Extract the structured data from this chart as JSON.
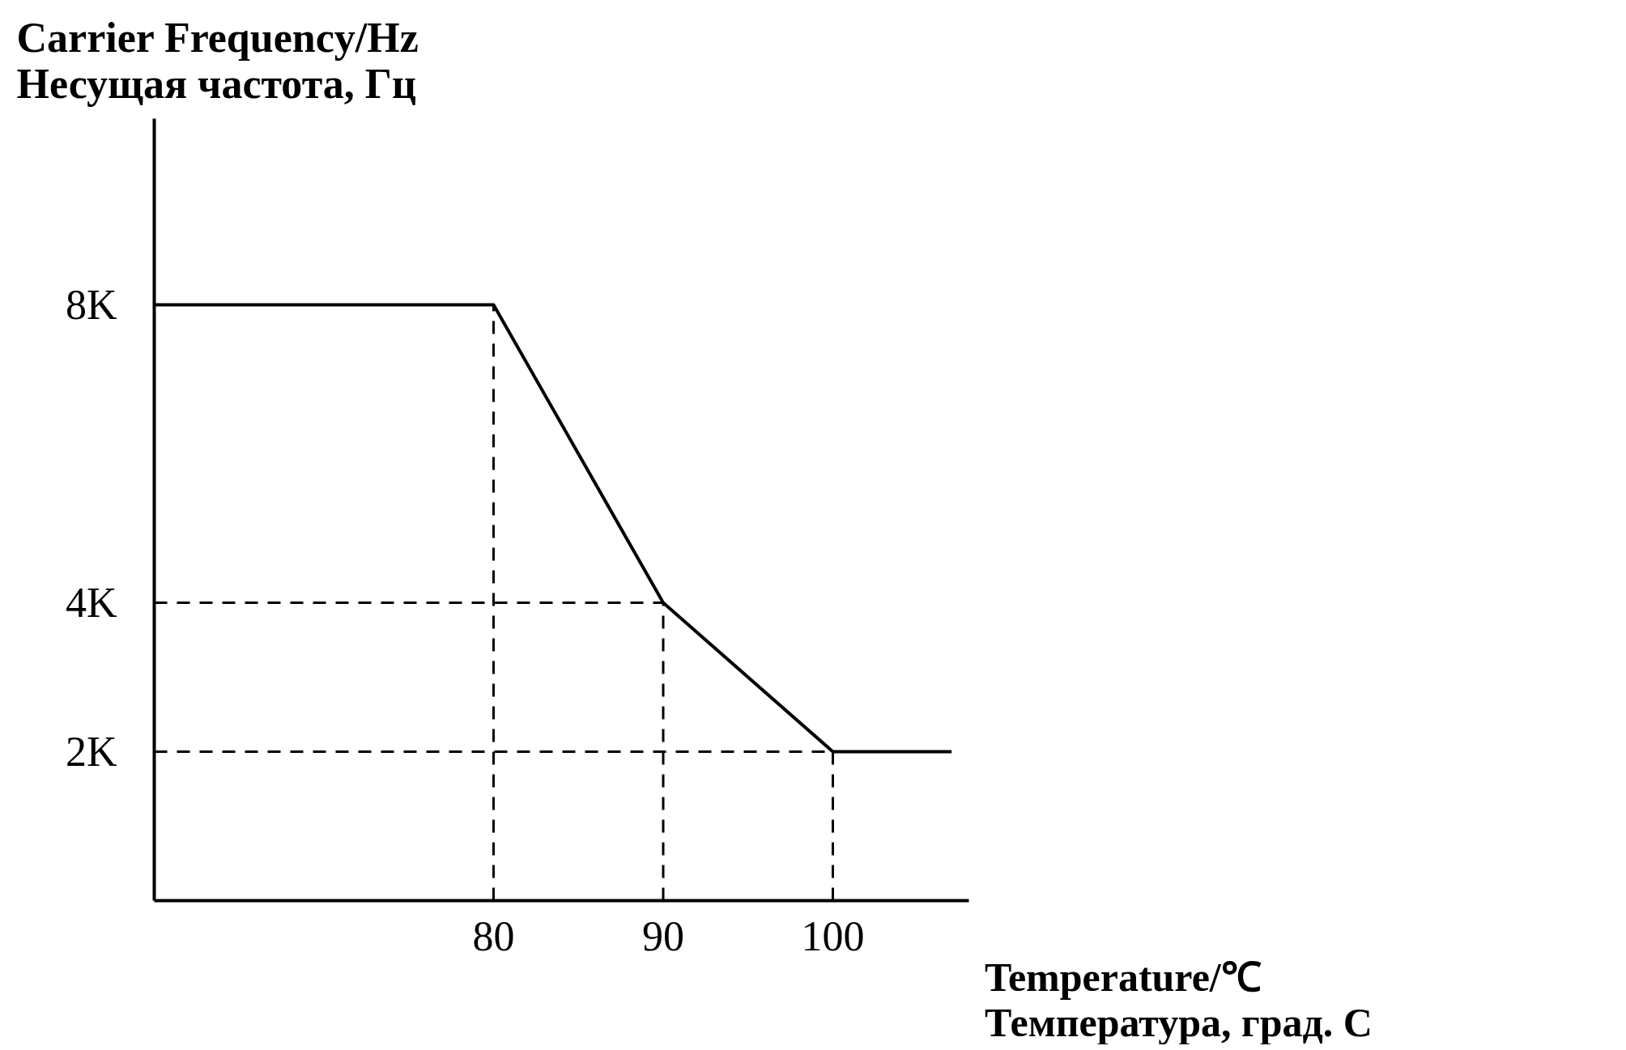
{
  "chart_data": {
    "type": "line",
    "ylabel": "Carrier Frequency/Hz\nНесущая частота, Гц",
    "xlabel": "Temperature/℃\nТемпература, град. C",
    "x": [
      60,
      80,
      90,
      100,
      107
    ],
    "series": [
      {
        "color": "#000000",
        "values": [
          8000,
          8000,
          4000,
          2000,
          2000
        ]
      }
    ],
    "xlim": [
      60,
      108
    ],
    "ylim": [
      0,
      10500
    ],
    "xticks": [
      80,
      90,
      100
    ],
    "yticks": [
      {
        "value": 2000,
        "label": "2K"
      },
      {
        "value": 4000,
        "label": "4K"
      },
      {
        "value": 8000,
        "label": "8K"
      }
    ],
    "ref_lines": [
      {
        "axis": "x",
        "value": 80,
        "line_style": "dashed",
        "color": "#000000"
      },
      {
        "axis": "x",
        "value": 90,
        "line_style": "dashed",
        "color": "#000000"
      },
      {
        "axis": "x",
        "value": 100,
        "line_style": "dashed",
        "color": "#000000"
      },
      {
        "axis": "y",
        "value": 4000,
        "line_style": "dashed",
        "color": "#000000"
      },
      {
        "axis": "y",
        "value": 2000,
        "line_style": "dashed",
        "color": "#000000"
      }
    ],
    "grid": false,
    "marker": "none",
    "line_style": "solid"
  }
}
